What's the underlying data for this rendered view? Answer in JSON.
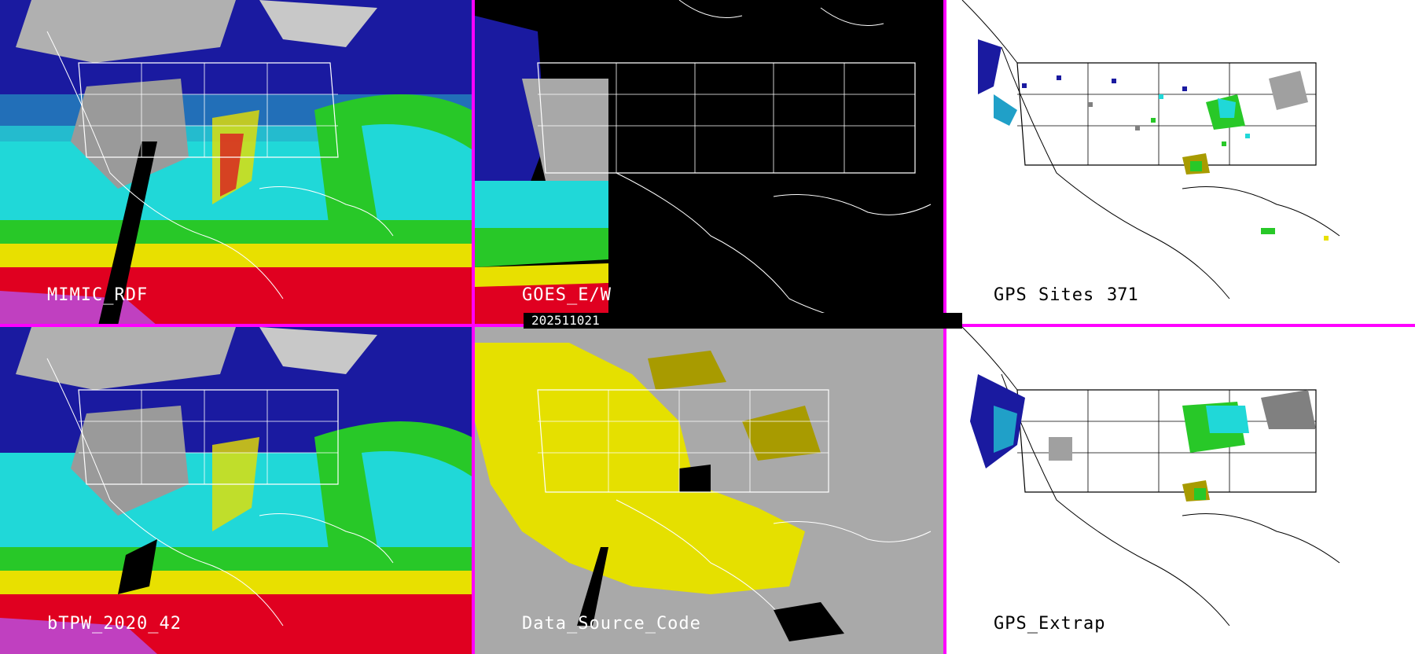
{
  "panels": [
    {
      "id": "mimic",
      "label": "MIMIC_RDF"
    },
    {
      "id": "goes",
      "label": "GOES_E/W"
    },
    {
      "id": "gps-sites",
      "label": "GPS Sites",
      "count": "371"
    },
    {
      "id": "bltpw",
      "label": "bTPW_2020_42"
    },
    {
      "id": "source",
      "label": "Data_Source_Code"
    },
    {
      "id": "gps-extrap",
      "label": "GPS_Extrap"
    }
  ],
  "date": "202511021",
  "colors": {
    "divider": "#ff00ff",
    "panel_bg_dark": "#000000",
    "panel_bg_gray": "#a9a9a9",
    "panel_bg_white": "#ffffff",
    "source_yellow": "#e5e000",
    "source_olive": "#a89b00",
    "tpw_blue": "#1a1aa0",
    "tpw_cyan": "#20d8d8",
    "tpw_green": "#28c828",
    "tpw_yellow": "#e8e000",
    "tpw_red": "#e00020",
    "tpw_magenta": "#c040c0"
  }
}
